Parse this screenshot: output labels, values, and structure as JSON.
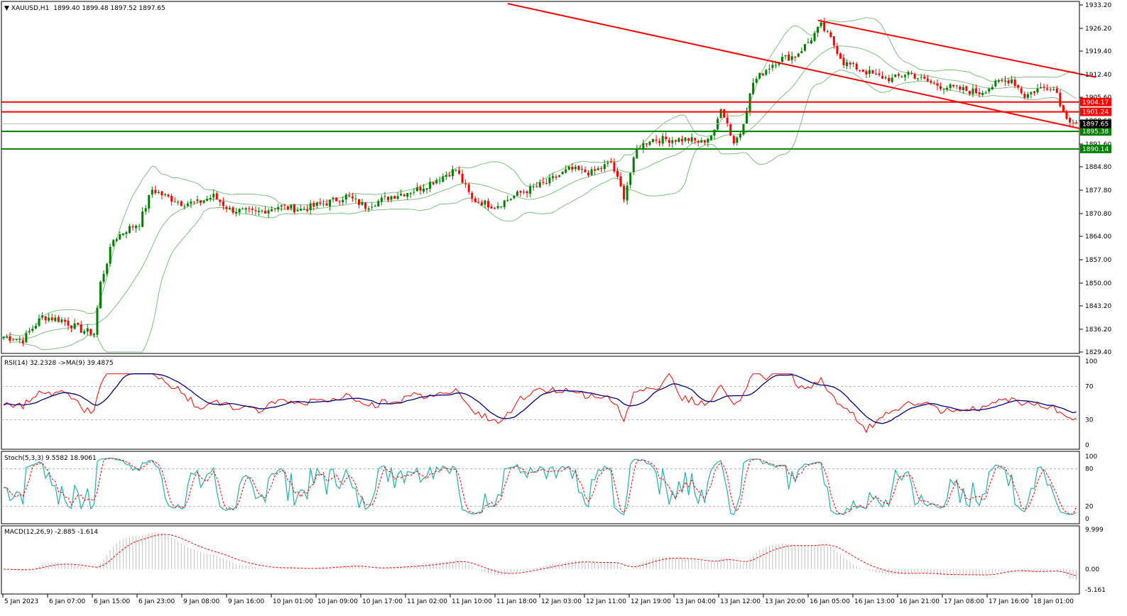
{
  "header": {
    "symbol": "XAUUSD,H1",
    "ohlc": "1899.40 1899.48 1897.52 1897.65"
  },
  "colors": {
    "bull": "#008000",
    "bear": "#ff0000",
    "band": "#7fbf7f",
    "resistance": "#ff0000",
    "support": "#008000",
    "rsi": "#ff0000",
    "rsi_ma": "#000080",
    "stoch_main": "#20b2aa",
    "stoch_signal": "#ff0000",
    "macd_hist": "#c0c0c0",
    "macd_signal": "#ff0000"
  },
  "chart_data": {
    "type": "candlestick",
    "price_axis": {
      "min": 1829.4,
      "max": 1933.2,
      "ticks": [
        "1933.20",
        "1926.20",
        "1919.40",
        "1912.40",
        "1905.60",
        "1898.60",
        "1891.60",
        "1884.80",
        "1877.80",
        "1870.80",
        "1864.00",
        "1857.00",
        "1850.00",
        "1843.20",
        "1836.20",
        "1829.40"
      ]
    },
    "time_labels": [
      "5 Jan 2023",
      "6 Jan 07:00",
      "6 Jan 15:00",
      "6 Jan 23:00",
      "9 Jan 08:00",
      "9 Jan 16:00",
      "10 Jan 01:00",
      "10 Jan 09:00",
      "10 Jan 17:00",
      "11 Jan 02:00",
      "11 Jan 10:00",
      "11 Jan 18:00",
      "12 Jan 03:00",
      "12 Jan 11:00",
      "12 Jan 19:00",
      "13 Jan 04:00",
      "13 Jan 12:00",
      "13 Jan 20:00",
      "16 Jan 05:00",
      "16 Jan 13:00",
      "16 Jan 21:00",
      "17 Jan 08:00",
      "17 Jan 16:00",
      "18 Jan 01:00"
    ],
    "close_anchors": [
      [
        0,
        1834
      ],
      [
        6,
        1833
      ],
      [
        12,
        1840
      ],
      [
        18,
        1839
      ],
      [
        24,
        1836
      ],
      [
        28,
        1835
      ],
      [
        30,
        1850
      ],
      [
        34,
        1863
      ],
      [
        38,
        1866
      ],
      [
        42,
        1868
      ],
      [
        46,
        1878
      ],
      [
        50,
        1876
      ],
      [
        55,
        1874
      ],
      [
        60,
        1874
      ],
      [
        65,
        1876
      ],
      [
        70,
        1872
      ],
      [
        78,
        1871
      ],
      [
        85,
        1873
      ],
      [
        92,
        1872
      ],
      [
        100,
        1874
      ],
      [
        106,
        1876
      ],
      [
        112,
        1873
      ],
      [
        120,
        1876
      ],
      [
        128,
        1878
      ],
      [
        134,
        1881
      ],
      [
        140,
        1884
      ],
      [
        145,
        1875
      ],
      [
        152,
        1873
      ],
      [
        160,
        1877
      ],
      [
        168,
        1880
      ],
      [
        175,
        1884
      ],
      [
        182,
        1883
      ],
      [
        188,
        1886
      ],
      [
        192,
        1876
      ],
      [
        196,
        1890
      ],
      [
        200,
        1893
      ],
      [
        206,
        1893
      ],
      [
        212,
        1893
      ],
      [
        216,
        1892
      ],
      [
        220,
        1895
      ],
      [
        222,
        1903
      ],
      [
        226,
        1892
      ],
      [
        228,
        1895
      ],
      [
        232,
        1910
      ],
      [
        236,
        1914
      ],
      [
        240,
        1917
      ],
      [
        245,
        1918
      ],
      [
        249,
        1922
      ],
      [
        253,
        1927
      ],
      [
        256,
        1923
      ],
      [
        260,
        1916
      ],
      [
        265,
        1914
      ],
      [
        270,
        1912
      ],
      [
        275,
        1911
      ],
      [
        280,
        1913
      ],
      [
        284,
        1911
      ],
      [
        290,
        1909
      ],
      [
        296,
        1908
      ],
      [
        302,
        1907
      ],
      [
        308,
        1910
      ],
      [
        312,
        1911
      ],
      [
        316,
        1906
      ],
      [
        320,
        1908
      ],
      [
        324,
        1909
      ],
      [
        326,
        1907
      ],
      [
        328,
        1901
      ],
      [
        330,
        1899
      ],
      [
        332,
        1897.65
      ]
    ],
    "channel_upper": {
      "from": {
        "bar": 156,
        "price": 1933.6
      },
      "to": {
        "bar": 338,
        "price": 1895.2
      }
    },
    "channel_parallel": {
      "from": {
        "bar": 252,
        "price": 1928.6
      },
      "to": {
        "bar": 338,
        "price": 1911.6
      }
    },
    "horizontal_levels": [
      {
        "price": 1904.17,
        "label": "1904.17",
        "kind": "resistance"
      },
      {
        "price": 1901.24,
        "label": "1901.24",
        "kind": "resistance"
      },
      {
        "price": 1895.38,
        "label": "1895.38",
        "kind": "support"
      },
      {
        "price": 1890.14,
        "label": "1890.14",
        "kind": "support"
      }
    ],
    "current_price": {
      "price": 1897.65,
      "label": "1897.65"
    },
    "rsi": {
      "header": "RSI(14) 32.2328  ->MA(9) 39.4875",
      "ticks": [
        "100",
        "70",
        "30",
        "0"
      ]
    },
    "stoch": {
      "header": "Stoch(5,3,3) 9.5582 18.9061",
      "ticks": [
        "100",
        "80",
        "20",
        "0"
      ]
    },
    "macd": {
      "header": "MACD(12,26,9) -2.885 -1.614",
      "ticks": [
        "9.999",
        "0.00",
        "-5.161"
      ]
    }
  }
}
